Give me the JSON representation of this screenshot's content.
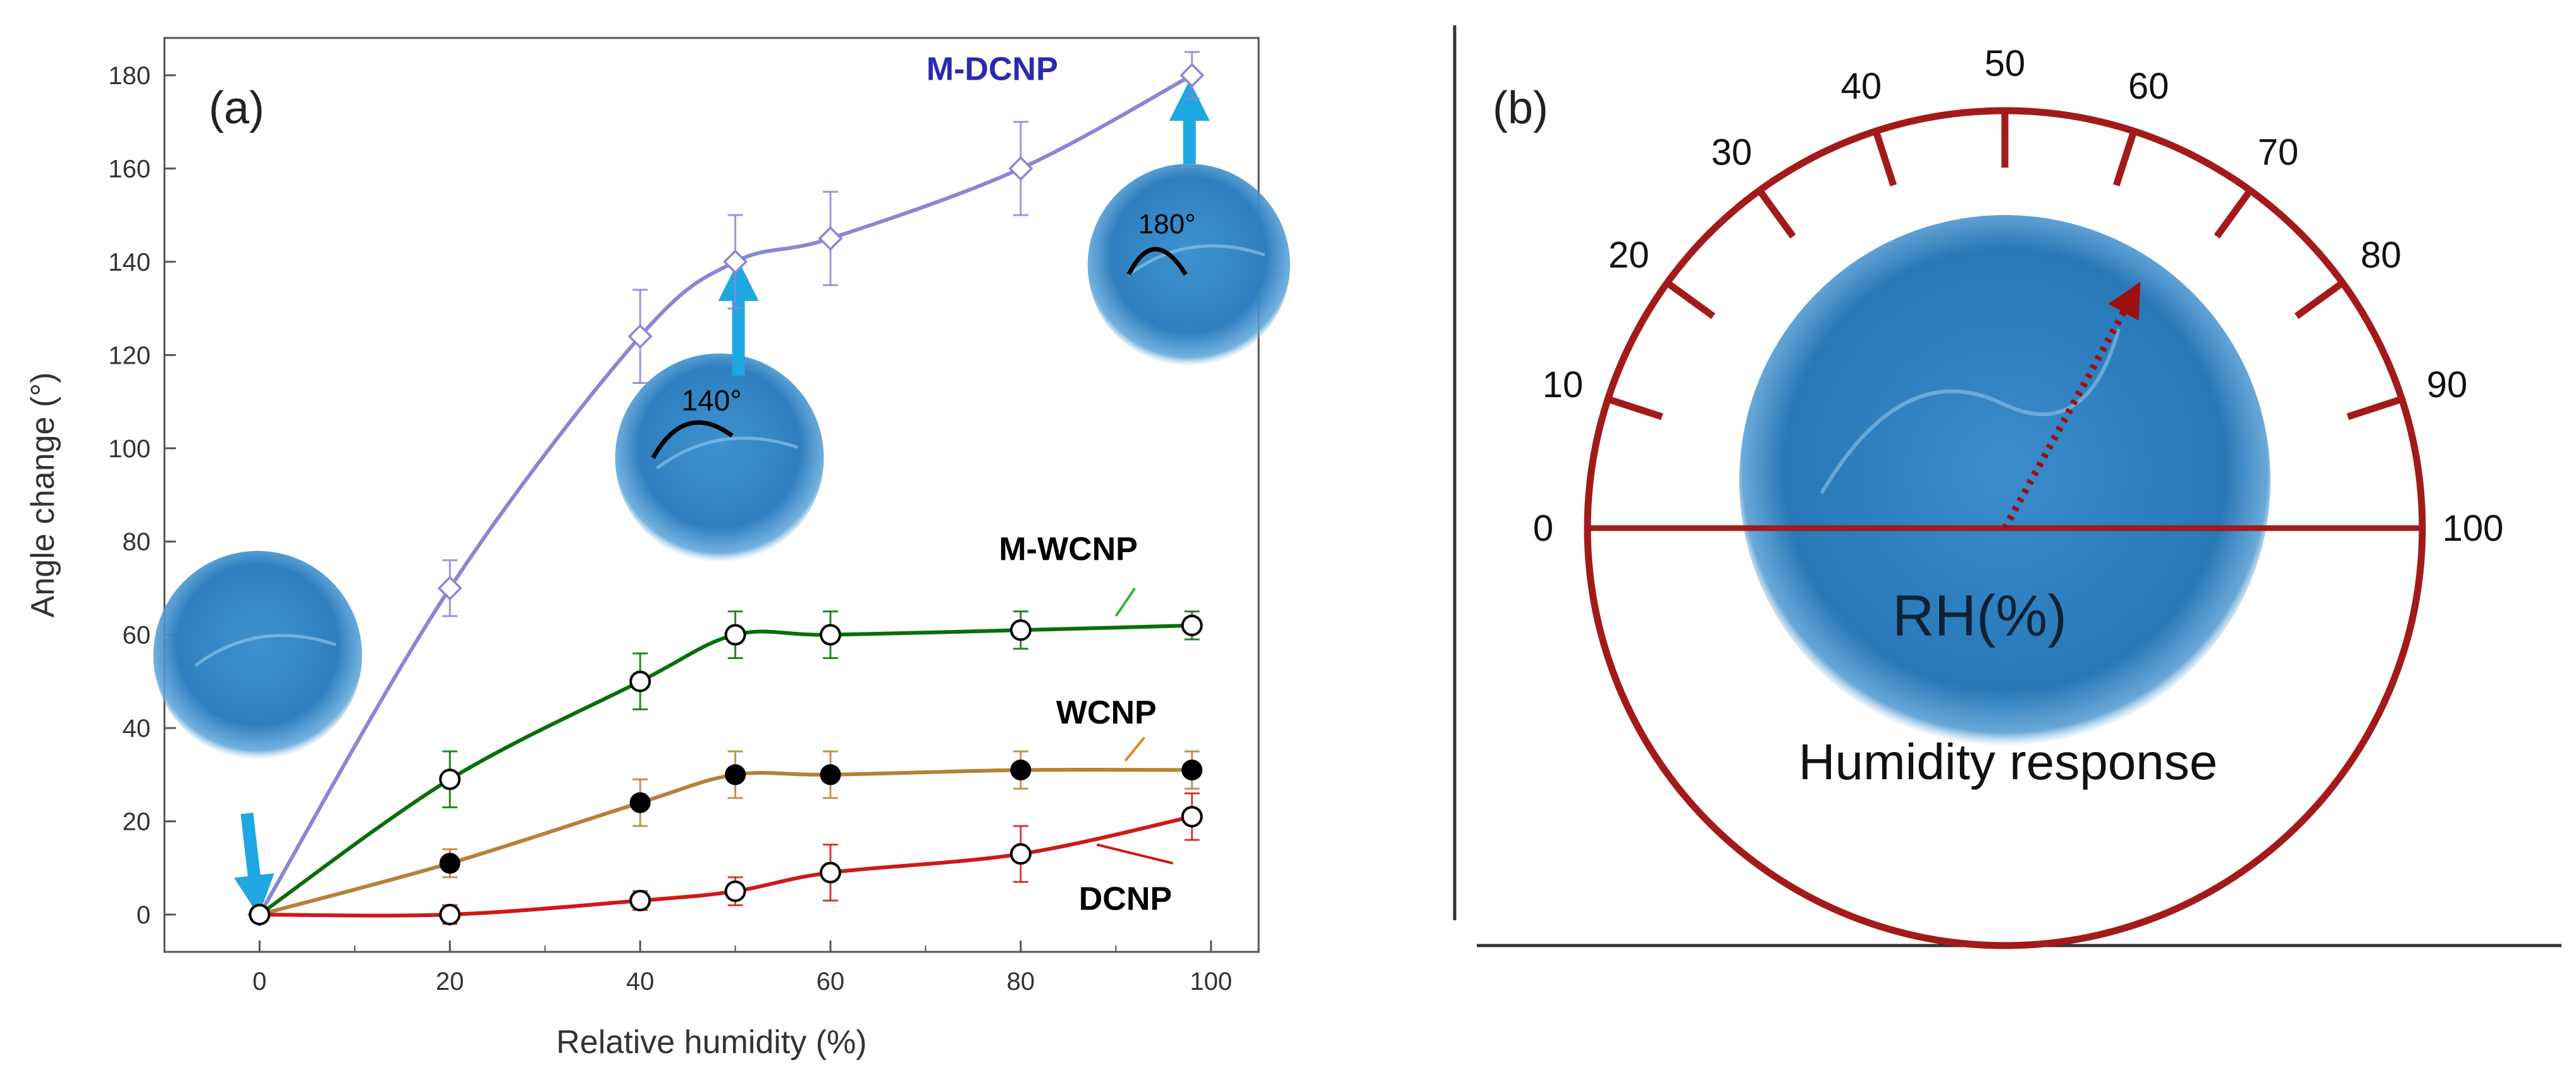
{
  "chart_data": [
    {
      "type": "line",
      "panel": "(a)",
      "xlabel": "Relative humidity (%)",
      "ylabel": "Angle change (°)",
      "xlim": [
        -10,
        105
      ],
      "ylim": [
        -8,
        188
      ],
      "xticks": [
        0,
        20,
        40,
        60,
        80,
        100
      ],
      "yticks": [
        0,
        20,
        40,
        60,
        80,
        100,
        120,
        140,
        160,
        180
      ],
      "series": [
        {
          "name": "M-DCNP",
          "color": "#8a86d6",
          "label_color": "#2a2ab0",
          "marker": "diamond-open",
          "x": [
            0,
            20,
            40,
            50,
            60,
            80,
            98
          ],
          "y": [
            0,
            70,
            124,
            140,
            145,
            160,
            180
          ],
          "yerr": [
            0,
            6,
            10,
            10,
            10,
            10,
            5
          ]
        },
        {
          "name": "M-WCNP",
          "color": "#0a6e0a",
          "label_color": "#000000",
          "marker": "circle-open",
          "x": [
            0,
            20,
            40,
            50,
            60,
            80,
            98
          ],
          "y": [
            0,
            29,
            50,
            60,
            60,
            61,
            62
          ],
          "yerr": [
            0,
            6,
            6,
            5,
            5,
            4,
            3
          ]
        },
        {
          "name": "WCNP",
          "color": "#b5813a",
          "label_color": "#000000",
          "marker": "circle-filled",
          "x": [
            0,
            20,
            40,
            50,
            60,
            80,
            98
          ],
          "y": [
            0,
            11,
            24,
            30,
            30,
            31,
            31
          ],
          "yerr": [
            0,
            3,
            5,
            5,
            5,
            4,
            4
          ]
        },
        {
          "name": "DCNP",
          "color": "#d01818",
          "label_color": "#000000",
          "marker": "circle-open",
          "x": [
            0,
            20,
            40,
            50,
            60,
            80,
            98
          ],
          "y": [
            0,
            0,
            3,
            5,
            9,
            13,
            21
          ],
          "yerr": [
            0,
            2,
            2,
            3,
            6,
            6,
            5
          ]
        }
      ],
      "insets": [
        {
          "name": "initial-disc",
          "x": 0,
          "y": 0
        },
        {
          "name": "disc-140",
          "x": 50,
          "y": 140,
          "label": "140°"
        },
        {
          "name": "disc-180",
          "x": 98,
          "y": 180,
          "label": "180°"
        }
      ]
    },
    {
      "type": "gauge",
      "panel": "(b)",
      "scale_labels": [
        "0",
        "10",
        "20",
        "30",
        "40",
        "50",
        "60",
        "70",
        "80",
        "90",
        "100"
      ],
      "pointer_value": 66,
      "center_label": "RH(%)",
      "caption": "Humidity response",
      "color": "#a31a1a"
    }
  ]
}
